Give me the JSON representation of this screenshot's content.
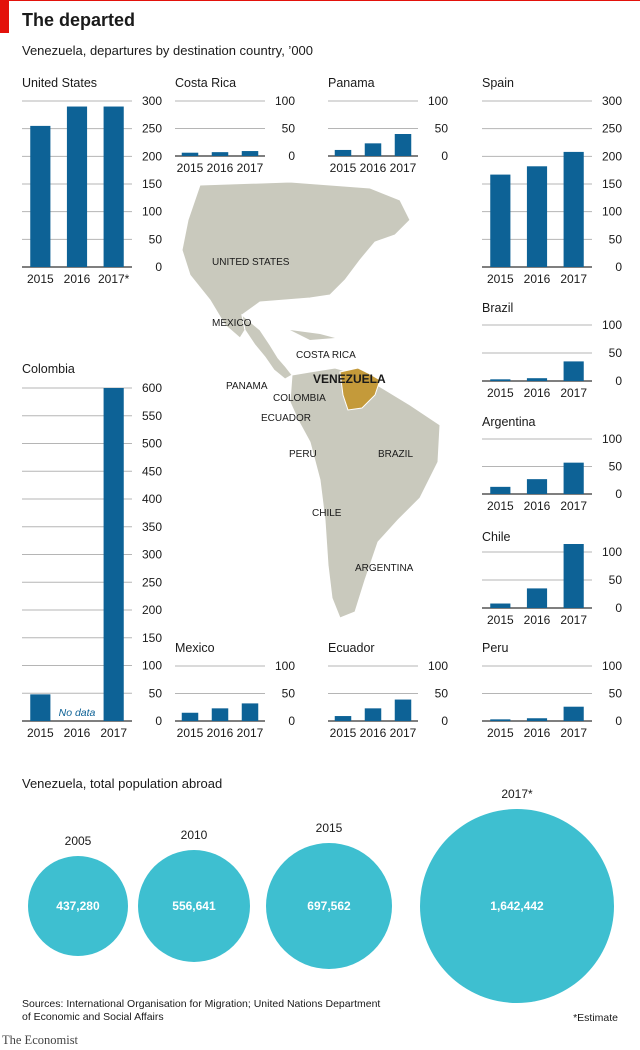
{
  "title": "The departed",
  "subtitle": "Venezuela, departures by destination country, ’000",
  "colors": {
    "bar": "#0d6296",
    "circle": "#3ebfd0",
    "accent": "#e3120b",
    "venezuela": "#c49a3a",
    "land": "#c9c9bd"
  },
  "chart_data": [
    {
      "type": "bar",
      "title": "United States",
      "categories": [
        "2015",
        "2016",
        "2017*"
      ],
      "values": [
        255,
        290,
        290
      ],
      "ylim": [
        0,
        300
      ],
      "ticks": [
        0,
        50,
        100,
        150,
        200,
        250,
        300
      ]
    },
    {
      "type": "bar",
      "title": "Costa Rica",
      "categories": [
        "2015",
        "2016",
        "2017"
      ],
      "values": [
        6,
        7,
        9
      ],
      "ylim": [
        0,
        100
      ],
      "ticks": [
        0,
        50,
        100
      ]
    },
    {
      "type": "bar",
      "title": "Panama",
      "categories": [
        "2015",
        "2016",
        "2017"
      ],
      "values": [
        11,
        23,
        40
      ],
      "ylim": [
        0,
        100
      ],
      "ticks": [
        0,
        50,
        100
      ]
    },
    {
      "type": "bar",
      "title": "Spain",
      "categories": [
        "2015",
        "2016",
        "2017"
      ],
      "values": [
        167,
        182,
        208
      ],
      "ylim": [
        0,
        300
      ],
      "ticks": [
        0,
        50,
        100,
        150,
        200,
        250,
        300
      ]
    },
    {
      "type": "bar",
      "title": "Brazil",
      "categories": [
        "2015",
        "2016",
        "2017"
      ],
      "values": [
        3,
        5,
        35
      ],
      "ylim": [
        0,
        100
      ],
      "ticks": [
        0,
        50,
        100
      ]
    },
    {
      "type": "bar",
      "title": "Colombia",
      "categories": [
        "2015",
        "2016",
        "2017"
      ],
      "values": [
        48,
        null,
        600
      ],
      "ylim": [
        0,
        600
      ],
      "ticks": [
        0,
        50,
        100,
        150,
        200,
        250,
        300,
        350,
        400,
        450,
        500,
        550,
        600
      ],
      "annotation": "No data"
    },
    {
      "type": "bar",
      "title": "Argentina",
      "categories": [
        "2015",
        "2016",
        "2017"
      ],
      "values": [
        13,
        27,
        57
      ],
      "ylim": [
        0,
        100
      ],
      "ticks": [
        0,
        50,
        100
      ]
    },
    {
      "type": "bar",
      "title": "Chile",
      "categories": [
        "2015",
        "2016",
        "2017"
      ],
      "values": [
        8,
        35,
        120
      ],
      "ylim": [
        0,
        125
      ],
      "ticks": [
        0,
        50,
        100
      ]
    },
    {
      "type": "bar",
      "title": "Mexico",
      "categories": [
        "2015",
        "2016",
        "2017"
      ],
      "values": [
        15,
        23,
        32
      ],
      "ylim": [
        0,
        100
      ],
      "ticks": [
        0,
        50,
        100
      ]
    },
    {
      "type": "bar",
      "title": "Ecuador",
      "categories": [
        "2015",
        "2016",
        "2017"
      ],
      "values": [
        9,
        23,
        39
      ],
      "ylim": [
        0,
        100
      ],
      "ticks": [
        0,
        50,
        100
      ]
    },
    {
      "type": "bar",
      "title": "Peru",
      "categories": [
        "2015",
        "2016",
        "2017"
      ],
      "values": [
        3,
        5,
        26
      ],
      "ylim": [
        0,
        100
      ],
      "ticks": [
        0,
        50,
        100
      ]
    }
  ],
  "map": {
    "labels": [
      "UNITED STATES",
      "MEXICO",
      "COSTA RICA",
      "PANAMA",
      "COLOMBIA",
      "VENEZUELA",
      "ECUADOR",
      "PERU",
      "BRAZIL",
      "CHILE",
      "ARGENTINA"
    ]
  },
  "population": {
    "title": "Venezuela, total population abroad",
    "years": [
      "2005",
      "2010",
      "2015",
      "2017*"
    ],
    "values": [
      437280,
      556641,
      697562,
      1642442
    ],
    "value_labels": [
      "437,280",
      "556,641",
      "697,562",
      "1,642,442"
    ]
  },
  "source": "Sources: International Organisation for Migration; United Nations Department of Economic and Social Affairs",
  "estimate_note": "*Estimate",
  "logo": "The Economist"
}
